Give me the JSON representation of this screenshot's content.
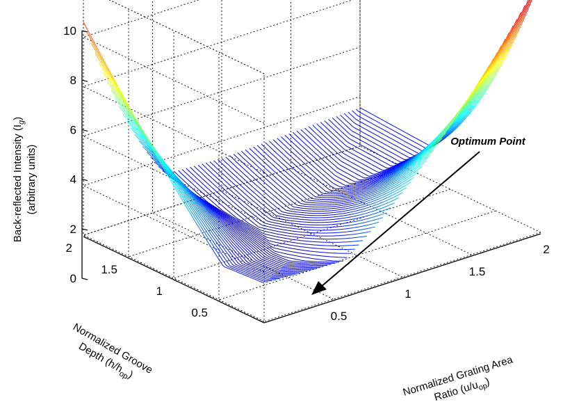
{
  "chart_data": {
    "type": "surface",
    "title": "",
    "xlabel_line1": "Normalized Grating Area",
    "xlabel_line2": "Ratio (u/u",
    "xlabel_sub": "op",
    "xlabel_end": ")",
    "ylabel_line1": "Normalized Groove",
    "ylabel_line2": "Depth (h/h",
    "ylabel_sub": "op",
    "ylabel_end": ")",
    "zlabel_line1": "Back-reflected Intensity (I",
    "zlabel_sub": "g",
    "zlabel_end": ")",
    "zlabel_line2": "(arbitrary units)",
    "x_ticks": [
      "0.5",
      "1",
      "1.5",
      "2"
    ],
    "x_tick_values": [
      0.5,
      1,
      1.5,
      2
    ],
    "y_ticks": [
      "0.5",
      "1",
      "1.5",
      "2"
    ],
    "y_tick_values": [
      0.5,
      1,
      1.5,
      2
    ],
    "z_ticks": [
      "0",
      "2",
      "4",
      "6",
      "8",
      "10"
    ],
    "z_tick_values": [
      0,
      2,
      4,
      6,
      8,
      10
    ],
    "xlim": [
      0,
      2
    ],
    "ylim": [
      0,
      2
    ],
    "zlim": [
      0,
      10
    ],
    "grid": true,
    "colormap": "jet",
    "surface_samples": {
      "description_points": [
        {
          "x": 1,
          "y": 1,
          "z": 0.0
        },
        {
          "x": 0.0,
          "y": 2,
          "z": 8.6
        },
        {
          "x": 2,
          "y": 0.0,
          "z": 10.3
        },
        {
          "x": 2,
          "y": 2,
          "z": 1.1
        },
        {
          "x": 0.0,
          "y": 0.0,
          "z": 0.0
        }
      ]
    },
    "annotation": {
      "text": "Optimum Point",
      "target": {
        "x": 1,
        "y": 1,
        "z": 0
      }
    }
  }
}
